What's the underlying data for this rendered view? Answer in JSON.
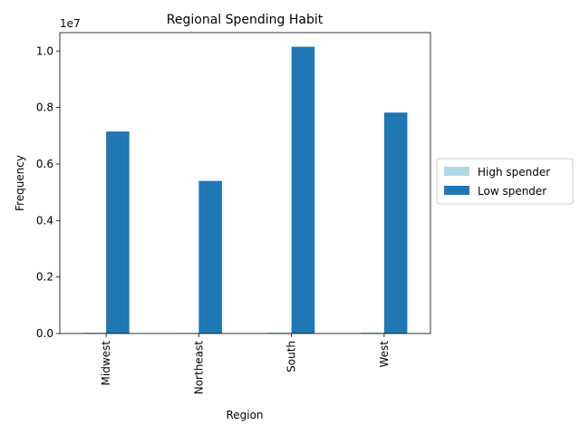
{
  "chart_data": {
    "type": "bar",
    "title": "Regional Spending Habit",
    "xlabel": "Region",
    "ylabel": "Frequency",
    "y_offset_text": "1e7",
    "categories": [
      "Midwest",
      "Northeast",
      "South",
      "West"
    ],
    "series": [
      {
        "name": "High spender",
        "values": [
          30000,
          20000,
          40000,
          35000
        ],
        "color": "#add8e6"
      },
      {
        "name": "Low spender",
        "values": [
          7150000,
          5400000,
          10150000,
          7820000
        ],
        "color": "#1f77b4"
      }
    ],
    "ylim": [
      0,
      10650000
    ],
    "yticks": [
      0,
      2000000,
      4000000,
      6000000,
      8000000,
      10000000
    ],
    "ytick_labels": [
      "0.0",
      "0.2",
      "0.4",
      "0.6",
      "0.8",
      "1.0"
    ],
    "legend_position": "center-right-outside",
    "grid": false
  }
}
